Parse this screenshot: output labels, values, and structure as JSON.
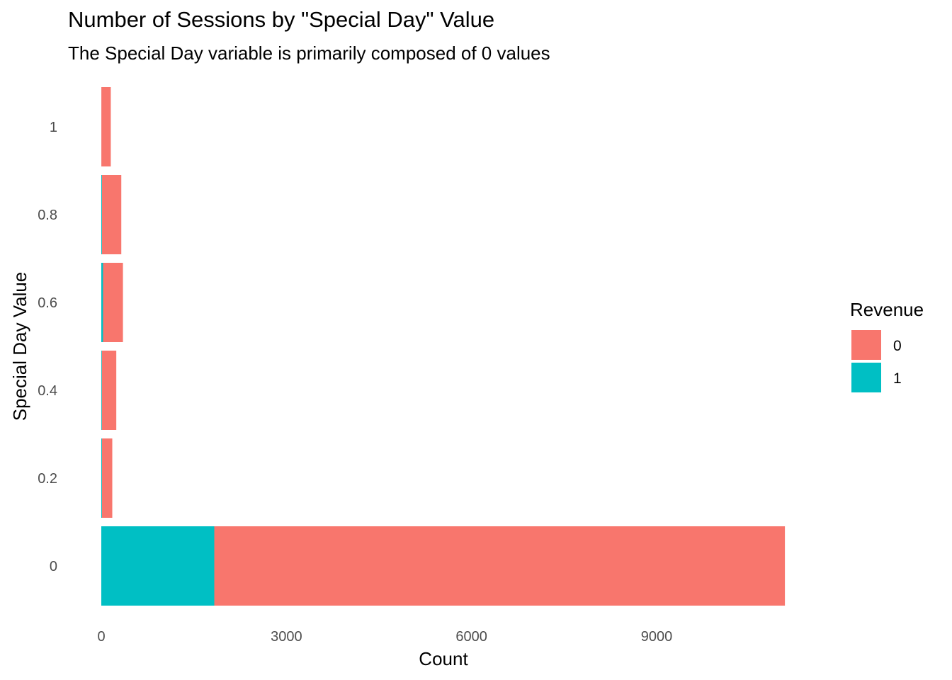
{
  "chart_data": {
    "type": "bar",
    "orientation": "horizontal",
    "stacked": true,
    "title": "Number of Sessions by \"Special Day\" Value",
    "subtitle": "The Special Day variable is primarily composed of 0 values",
    "xlabel": "Count",
    "ylabel": "Special Day Value",
    "categories": [
      "0",
      "0.2",
      "0.4",
      "0.6",
      "0.8",
      "1"
    ],
    "x_ticks": [
      "0",
      "3000",
      "6000",
      "9000"
    ],
    "xlim": [
      0,
      11100
    ],
    "grid": false,
    "legend": {
      "title": "Revenue",
      "position": "right"
    },
    "series": [
      {
        "name": "1",
        "color": "#00BFC4",
        "values": [
          1831,
          11,
          10,
          29,
          11,
          1
        ]
      },
      {
        "name": "0",
        "color": "#F8766D",
        "values": [
          9248,
          167,
          233,
          322,
          313,
          153
        ]
      }
    ]
  }
}
